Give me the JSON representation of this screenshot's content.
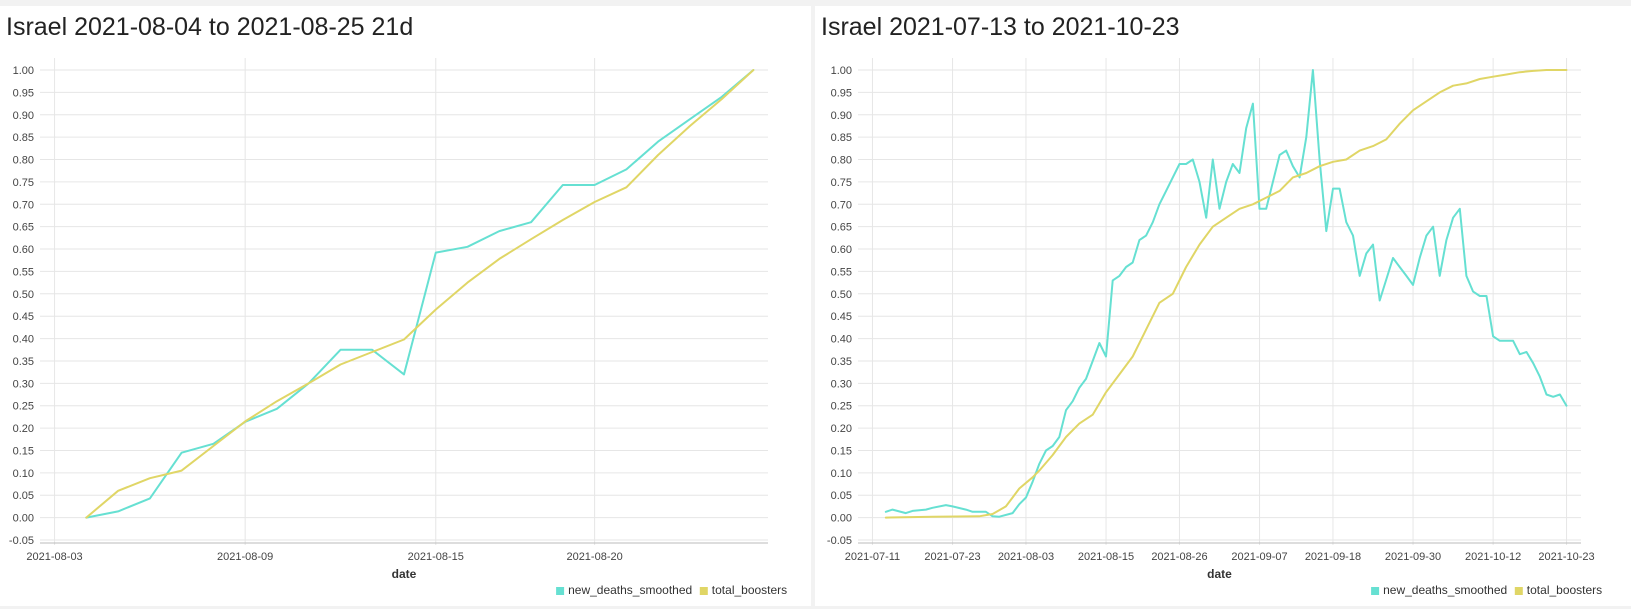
{
  "chart_data": [
    {
      "type": "line",
      "title": "Israel 2021-08-04 to 2021-08-25 21d",
      "xlabel": "date",
      "ylabel": "",
      "x_domain": [
        "2021-08-03",
        "2021-08-25"
      ],
      "ylim": [
        -0.05,
        1.0
      ],
      "yticks": [
        -0.05,
        0.0,
        0.05,
        0.1,
        0.15,
        0.2,
        0.25,
        0.3,
        0.35,
        0.4,
        0.45,
        0.5,
        0.55,
        0.6,
        0.65,
        0.7,
        0.75,
        0.8,
        0.85,
        0.9,
        0.95,
        1.0
      ],
      "xticks": [
        "2021-08-03",
        "2021-08-09",
        "2021-08-15",
        "2021-08-20"
      ],
      "grid": true,
      "legend_position": "bottom-right",
      "series": [
        {
          "name": "new_deaths_smoothed",
          "color": "#66e0d2",
          "x": [
            "2021-08-04",
            "2021-08-05",
            "2021-08-06",
            "2021-08-07",
            "2021-08-08",
            "2021-08-09",
            "2021-08-10",
            "2021-08-11",
            "2021-08-12",
            "2021-08-13",
            "2021-08-14",
            "2021-08-15",
            "2021-08-16",
            "2021-08-17",
            "2021-08-18",
            "2021-08-19",
            "2021-08-20",
            "2021-08-21",
            "2021-08-22",
            "2021-08-23",
            "2021-08-24",
            "2021-08-25"
          ],
          "values": [
            0.0,
            0.014,
            0.043,
            0.145,
            0.165,
            0.214,
            0.243,
            0.3,
            0.375,
            0.375,
            0.32,
            0.592,
            0.605,
            0.64,
            0.66,
            0.743,
            0.743,
            0.778,
            0.84,
            0.89,
            0.94,
            1.0
          ]
        },
        {
          "name": "total_boosters",
          "color": "#e0d666",
          "x": [
            "2021-08-04",
            "2021-08-05",
            "2021-08-06",
            "2021-08-07",
            "2021-08-08",
            "2021-08-09",
            "2021-08-10",
            "2021-08-11",
            "2021-08-12",
            "2021-08-13",
            "2021-08-14",
            "2021-08-15",
            "2021-08-16",
            "2021-08-17",
            "2021-08-18",
            "2021-08-19",
            "2021-08-20",
            "2021-08-21",
            "2021-08-22",
            "2021-08-23",
            "2021-08-24",
            "2021-08-25"
          ],
          "values": [
            0.0,
            0.06,
            0.088,
            0.105,
            0.16,
            0.215,
            0.26,
            0.3,
            0.342,
            0.37,
            0.398,
            0.465,
            0.525,
            0.578,
            0.622,
            0.665,
            0.705,
            0.738,
            0.81,
            0.875,
            0.935,
            1.0
          ]
        }
      ]
    },
    {
      "type": "line",
      "title": "Israel 2021-07-13 to 2021-10-23",
      "xlabel": "date",
      "ylabel": "",
      "x_domain": [
        "2021-07-11",
        "2021-10-23"
      ],
      "ylim": [
        -0.05,
        1.0
      ],
      "yticks": [
        -0.05,
        0.0,
        0.05,
        0.1,
        0.15,
        0.2,
        0.25,
        0.3,
        0.35,
        0.4,
        0.45,
        0.5,
        0.55,
        0.6,
        0.65,
        0.7,
        0.75,
        0.8,
        0.85,
        0.9,
        0.95,
        1.0
      ],
      "xticks": [
        "2021-07-11",
        "2021-07-23",
        "2021-08-03",
        "2021-08-15",
        "2021-08-26",
        "2021-09-07",
        "2021-09-18",
        "2021-09-30",
        "2021-10-12",
        "2021-10-23"
      ],
      "grid": true,
      "legend_position": "bottom-right",
      "series": [
        {
          "name": "new_deaths_smoothed",
          "color": "#66e0d2",
          "x": [
            "2021-07-13",
            "2021-07-14",
            "2021-07-16",
            "2021-07-17",
            "2021-07-19",
            "2021-07-20",
            "2021-07-22",
            "2021-07-23",
            "2021-07-25",
            "2021-07-26",
            "2021-07-28",
            "2021-07-29",
            "2021-07-30",
            "2021-08-01",
            "2021-08-02",
            "2021-08-03",
            "2021-08-04",
            "2021-08-05",
            "2021-08-06",
            "2021-08-07",
            "2021-08-08",
            "2021-08-09",
            "2021-08-10",
            "2021-08-11",
            "2021-08-12",
            "2021-08-13",
            "2021-08-14",
            "2021-08-15",
            "2021-08-16",
            "2021-08-17",
            "2021-08-18",
            "2021-08-19",
            "2021-08-20",
            "2021-08-21",
            "2021-08-22",
            "2021-08-23",
            "2021-08-24",
            "2021-08-25",
            "2021-08-26",
            "2021-08-27",
            "2021-08-28",
            "2021-08-29",
            "2021-08-30",
            "2021-08-31",
            "2021-09-01",
            "2021-09-02",
            "2021-09-03",
            "2021-09-04",
            "2021-09-05",
            "2021-09-06",
            "2021-09-07",
            "2021-09-08",
            "2021-09-09",
            "2021-09-10",
            "2021-09-11",
            "2021-09-12",
            "2021-09-13",
            "2021-09-14",
            "2021-09-15",
            "2021-09-16",
            "2021-09-17",
            "2021-09-18",
            "2021-09-19",
            "2021-09-20",
            "2021-09-21",
            "2021-09-22",
            "2021-09-23",
            "2021-09-24",
            "2021-09-25",
            "2021-09-27",
            "2021-09-28",
            "2021-09-29",
            "2021-09-30",
            "2021-10-01",
            "2021-10-02",
            "2021-10-03",
            "2021-10-04",
            "2021-10-05",
            "2021-10-06",
            "2021-10-07",
            "2021-10-08",
            "2021-10-09",
            "2021-10-10",
            "2021-10-11",
            "2021-10-12",
            "2021-10-13",
            "2021-10-14",
            "2021-10-15",
            "2021-10-16",
            "2021-10-17",
            "2021-10-18",
            "2021-10-19",
            "2021-10-20",
            "2021-10-21",
            "2021-10-22",
            "2021-10-23"
          ],
          "values": [
            0.013,
            0.018,
            0.01,
            0.015,
            0.018,
            0.022,
            0.028,
            0.025,
            0.018,
            0.013,
            0.013,
            0.003,
            0.002,
            0.01,
            0.03,
            0.045,
            0.08,
            0.12,
            0.15,
            0.16,
            0.18,
            0.24,
            0.26,
            0.29,
            0.31,
            0.35,
            0.39,
            0.36,
            0.53,
            0.54,
            0.56,
            0.57,
            0.62,
            0.63,
            0.66,
            0.7,
            0.73,
            0.76,
            0.79,
            0.79,
            0.8,
            0.75,
            0.67,
            0.8,
            0.69,
            0.75,
            0.79,
            0.77,
            0.87,
            0.925,
            0.69,
            0.69,
            0.75,
            0.81,
            0.82,
            0.785,
            0.76,
            0.85,
            1.0,
            0.8,
            0.64,
            0.735,
            0.735,
            0.66,
            0.63,
            0.54,
            0.59,
            0.61,
            0.485,
            0.58,
            0.56,
            0.54,
            0.52,
            0.58,
            0.63,
            0.65,
            0.54,
            0.62,
            0.67,
            0.69,
            0.54,
            0.505,
            0.495,
            0.495,
            0.405,
            0.395,
            0.395,
            0.395,
            0.365,
            0.37,
            0.345,
            0.315,
            0.275,
            0.27,
            0.275,
            0.25
          ]
        },
        {
          "name": "total_boosters",
          "color": "#e0d666",
          "x": [
            "2021-07-13",
            "2021-07-20",
            "2021-07-27",
            "2021-07-29",
            "2021-07-31",
            "2021-08-01",
            "2021-08-02",
            "2021-08-04",
            "2021-08-05",
            "2021-08-07",
            "2021-08-09",
            "2021-08-11",
            "2021-08-13",
            "2021-08-15",
            "2021-08-17",
            "2021-08-19",
            "2021-08-21",
            "2021-08-23",
            "2021-08-25",
            "2021-08-27",
            "2021-08-29",
            "2021-08-31",
            "2021-09-02",
            "2021-09-04",
            "2021-09-06",
            "2021-09-08",
            "2021-09-10",
            "2021-09-12",
            "2021-09-14",
            "2021-09-16",
            "2021-09-18",
            "2021-09-20",
            "2021-09-22",
            "2021-09-24",
            "2021-09-26",
            "2021-09-28",
            "2021-09-30",
            "2021-10-02",
            "2021-10-04",
            "2021-10-06",
            "2021-10-08",
            "2021-10-10",
            "2021-10-12",
            "2021-10-14",
            "2021-10-16",
            "2021-10-18",
            "2021-10-20",
            "2021-10-23"
          ],
          "values": [
            0.0,
            0.002,
            0.003,
            0.008,
            0.025,
            0.045,
            0.065,
            0.09,
            0.105,
            0.14,
            0.18,
            0.21,
            0.23,
            0.28,
            0.32,
            0.36,
            0.42,
            0.48,
            0.5,
            0.56,
            0.61,
            0.65,
            0.67,
            0.69,
            0.7,
            0.715,
            0.73,
            0.76,
            0.77,
            0.785,
            0.795,
            0.8,
            0.82,
            0.83,
            0.845,
            0.88,
            0.91,
            0.93,
            0.95,
            0.965,
            0.97,
            0.98,
            0.985,
            0.99,
            0.995,
            0.998,
            1.0,
            1.0
          ]
        }
      ]
    }
  ]
}
